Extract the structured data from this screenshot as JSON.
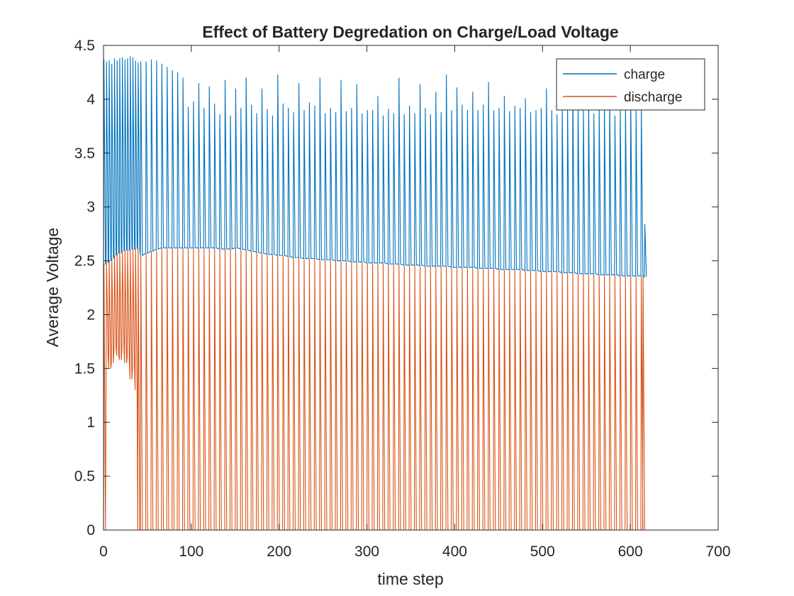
{
  "chart_data": {
    "type": "line",
    "title": "Effect of Battery Degredation on Charge/Load Voltage",
    "xlabel": "time step",
    "ylabel": "Average Voltage",
    "xlim": [
      0,
      700
    ],
    "ylim": [
      0,
      4.5
    ],
    "xticks": [
      0,
      100,
      200,
      300,
      400,
      500,
      600,
      700
    ],
    "yticks": [
      0,
      0.5,
      1,
      1.5,
      2,
      2.5,
      3,
      3.5,
      4,
      4.5
    ],
    "grid": false,
    "legend": "top-right",
    "series": [
      {
        "name": "charge",
        "color": "#0072BD",
        "x": [
          0,
          3,
          6,
          9,
          12,
          15,
          18,
          21,
          24,
          27,
          30,
          33,
          36,
          39,
          42,
          48,
          54,
          60,
          66,
          72,
          78,
          84,
          90,
          96,
          102,
          108,
          114,
          120,
          126,
          132,
          138,
          144,
          150,
          156,
          162,
          168,
          174,
          180,
          186,
          192,
          198,
          204,
          210,
          216,
          222,
          228,
          234,
          240,
          246,
          252,
          258,
          264,
          270,
          276,
          282,
          288,
          294,
          300,
          306,
          312,
          318,
          324,
          330,
          336,
          342,
          348,
          354,
          360,
          366,
          372,
          378,
          384,
          390,
          396,
          402,
          408,
          414,
          420,
          426,
          432,
          438,
          444,
          450,
          456,
          462,
          468,
          474,
          480,
          486,
          492,
          498,
          504,
          510,
          516,
          522,
          528,
          534,
          540,
          546,
          552,
          558,
          564,
          570,
          576,
          582,
          588,
          594,
          600,
          606,
          612,
          616
        ],
        "peak": [
          4.37,
          4.35,
          4.36,
          4.33,
          4.38,
          4.36,
          4.38,
          4.39,
          4.37,
          4.38,
          4.4,
          4.39,
          4.36,
          4.34,
          4.35,
          4.35,
          4.37,
          4.36,
          4.33,
          4.3,
          4.27,
          4.25,
          4.2,
          3.93,
          3.98,
          4.15,
          3.92,
          4.12,
          3.96,
          3.86,
          4.18,
          3.85,
          4.1,
          3.92,
          4.2,
          3.95,
          3.87,
          4.1,
          3.91,
          3.85,
          4.23,
          3.96,
          3.92,
          3.88,
          4.15,
          3.9,
          3.97,
          3.94,
          4.2,
          3.87,
          3.92,
          3.88,
          4.18,
          3.89,
          3.92,
          4.14,
          3.87,
          3.9,
          3.9,
          4.03,
          3.85,
          3.91,
          3.87,
          4.2,
          3.86,
          3.94,
          3.87,
          4.14,
          3.92,
          3.86,
          4.07,
          3.88,
          4.23,
          3.9,
          4.11,
          3.95,
          3.9,
          4.07,
          3.9,
          3.95,
          4.16,
          3.9,
          3.92,
          4.03,
          3.89,
          3.94,
          3.92,
          4.01,
          3.88,
          3.9,
          3.92,
          4.1,
          3.9,
          3.86,
          3.92,
          3.93,
          4.13,
          3.98,
          3.92,
          4.0,
          3.87,
          3.93,
          3.96,
          4.05,
          3.85,
          3.93,
          3.95,
          4.0,
          3.9,
          3.95,
          2.84
        ],
        "trough": [
          2.47,
          2.48,
          2.5,
          2.52,
          2.55,
          2.57,
          2.58,
          2.59,
          2.6,
          2.6,
          2.61,
          2.61,
          2.62,
          2.61,
          2.55,
          2.57,
          2.59,
          2.61,
          2.62,
          2.62,
          2.62,
          2.62,
          2.62,
          2.62,
          2.62,
          2.62,
          2.62,
          2.62,
          2.62,
          2.61,
          2.61,
          2.61,
          2.62,
          2.61,
          2.6,
          2.59,
          2.58,
          2.57,
          2.56,
          2.56,
          2.55,
          2.55,
          2.54,
          2.53,
          2.53,
          2.52,
          2.52,
          2.52,
          2.51,
          2.51,
          2.51,
          2.5,
          2.5,
          2.5,
          2.49,
          2.49,
          2.49,
          2.48,
          2.48,
          2.48,
          2.48,
          2.47,
          2.47,
          2.47,
          2.46,
          2.46,
          2.46,
          2.46,
          2.45,
          2.45,
          2.45,
          2.45,
          2.45,
          2.44,
          2.44,
          2.44,
          2.44,
          2.44,
          2.43,
          2.43,
          2.43,
          2.43,
          2.42,
          2.42,
          2.42,
          2.42,
          2.42,
          2.41,
          2.41,
          2.41,
          2.4,
          2.4,
          2.4,
          2.4,
          2.39,
          2.39,
          2.39,
          2.38,
          2.38,
          2.38,
          2.38,
          2.37,
          2.37,
          2.37,
          2.37,
          2.36,
          2.36,
          2.36,
          2.36,
          2.36,
          2.35
        ]
      },
      {
        "name": "discharge",
        "color": "#D95319",
        "x": [
          0,
          3,
          6,
          9,
          12,
          15,
          18,
          21,
          24,
          27,
          30,
          33,
          36,
          39,
          42,
          48,
          54,
          60,
          66,
          72,
          78,
          84,
          90,
          96,
          102,
          108,
          114,
          120,
          126,
          132,
          138,
          144,
          150,
          156,
          162,
          168,
          174,
          180,
          186,
          192,
          198,
          204,
          210,
          216,
          222,
          228,
          234,
          240,
          246,
          252,
          258,
          264,
          270,
          276,
          282,
          288,
          294,
          300,
          306,
          312,
          318,
          324,
          330,
          336,
          342,
          348,
          354,
          360,
          366,
          372,
          378,
          384,
          390,
          396,
          402,
          408,
          414,
          420,
          426,
          432,
          438,
          444,
          450,
          456,
          462,
          468,
          474,
          480,
          486,
          492,
          498,
          504,
          510,
          516,
          522,
          528,
          534,
          540,
          546,
          552,
          558,
          564,
          570,
          576,
          582,
          588,
          594,
          600,
          606,
          612,
          614
        ],
        "peak": [
          2.47,
          2.48,
          2.5,
          2.52,
          2.55,
          2.57,
          2.58,
          2.59,
          2.6,
          2.6,
          2.61,
          2.61,
          2.62,
          2.61,
          2.55,
          2.57,
          2.59,
          2.61,
          2.62,
          2.62,
          2.62,
          2.62,
          2.62,
          2.62,
          2.62,
          2.62,
          2.62,
          2.62,
          2.62,
          2.61,
          2.61,
          2.61,
          2.62,
          2.61,
          2.6,
          2.59,
          2.58,
          2.57,
          2.56,
          2.56,
          2.55,
          2.55,
          2.54,
          2.53,
          2.53,
          2.52,
          2.52,
          2.52,
          2.51,
          2.51,
          2.51,
          2.5,
          2.5,
          2.5,
          2.49,
          2.49,
          2.49,
          2.48,
          2.48,
          2.48,
          2.48,
          2.47,
          2.47,
          2.47,
          2.46,
          2.46,
          2.46,
          2.46,
          2.45,
          2.45,
          2.45,
          2.45,
          2.45,
          2.44,
          2.44,
          2.44,
          2.44,
          2.44,
          2.43,
          2.43,
          2.43,
          2.43,
          2.42,
          2.42,
          2.42,
          2.42,
          2.42,
          2.41,
          2.41,
          2.41,
          2.4,
          2.4,
          2.4,
          2.4,
          2.39,
          2.39,
          2.39,
          2.38,
          2.38,
          2.38,
          2.38,
          2.37,
          2.37,
          2.37,
          2.37,
          2.36,
          2.36,
          2.36,
          2.36,
          2.36,
          2.38
        ],
        "trough": [
          0,
          1.6,
          1.5,
          1.55,
          1.7,
          1.62,
          1.58,
          1.68,
          1.55,
          1.6,
          1.4,
          1.5,
          1.3,
          0,
          0,
          0,
          0,
          0,
          0,
          0,
          0,
          0,
          0,
          0,
          0,
          0,
          0,
          0,
          0,
          0,
          0,
          0,
          0,
          0,
          0,
          0,
          0,
          0,
          0,
          0,
          0,
          0,
          0,
          0,
          0,
          0,
          0,
          0,
          0,
          0,
          0,
          0,
          0,
          0,
          0,
          0,
          0,
          0,
          0,
          0,
          0,
          0,
          0,
          0,
          0,
          0,
          0,
          0,
          0,
          0,
          0,
          0,
          0,
          0,
          0,
          0,
          0,
          0,
          0,
          0,
          0,
          0,
          0,
          0,
          0,
          0,
          0,
          0,
          0,
          0,
          0,
          0,
          0,
          0,
          0,
          0,
          0,
          0,
          0,
          0,
          0,
          0,
          0,
          0,
          0,
          0,
          0,
          0,
          0,
          0,
          0
        ]
      }
    ]
  }
}
